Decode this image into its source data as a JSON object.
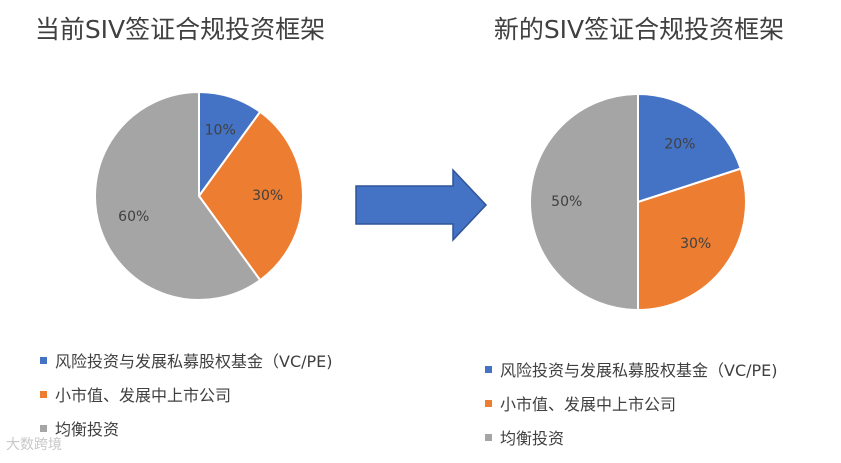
{
  "chart_data": [
    {
      "type": "pie",
      "title": "当前SIV签证合规投资框架",
      "categories": [
        "风险投资与发展私募股权基金（VC/PE)",
        "小市值、发展中上市公司",
        "均衡投资"
      ],
      "values": [
        10,
        30,
        60
      ],
      "data_labels": [
        "10%",
        "30%",
        "60%"
      ],
      "colors": [
        "#4472c4",
        "#ed7d31",
        "#a5a5a5"
      ],
      "legend": "bottom"
    },
    {
      "type": "pie",
      "title": "新的SIV签证合规投资框架",
      "categories": [
        "风险投资与发展私募股权基金（VC/PE)",
        "小市值、发展中上市公司",
        "均衡投资"
      ],
      "values": [
        20,
        30,
        50
      ],
      "data_labels": [
        "20%",
        "30%",
        "50%"
      ],
      "colors": [
        "#4472c4",
        "#ed7d31",
        "#a5a5a5"
      ],
      "legend": "bottom"
    }
  ],
  "arrow_color": "#4472c4",
  "watermark": "大数跨境"
}
